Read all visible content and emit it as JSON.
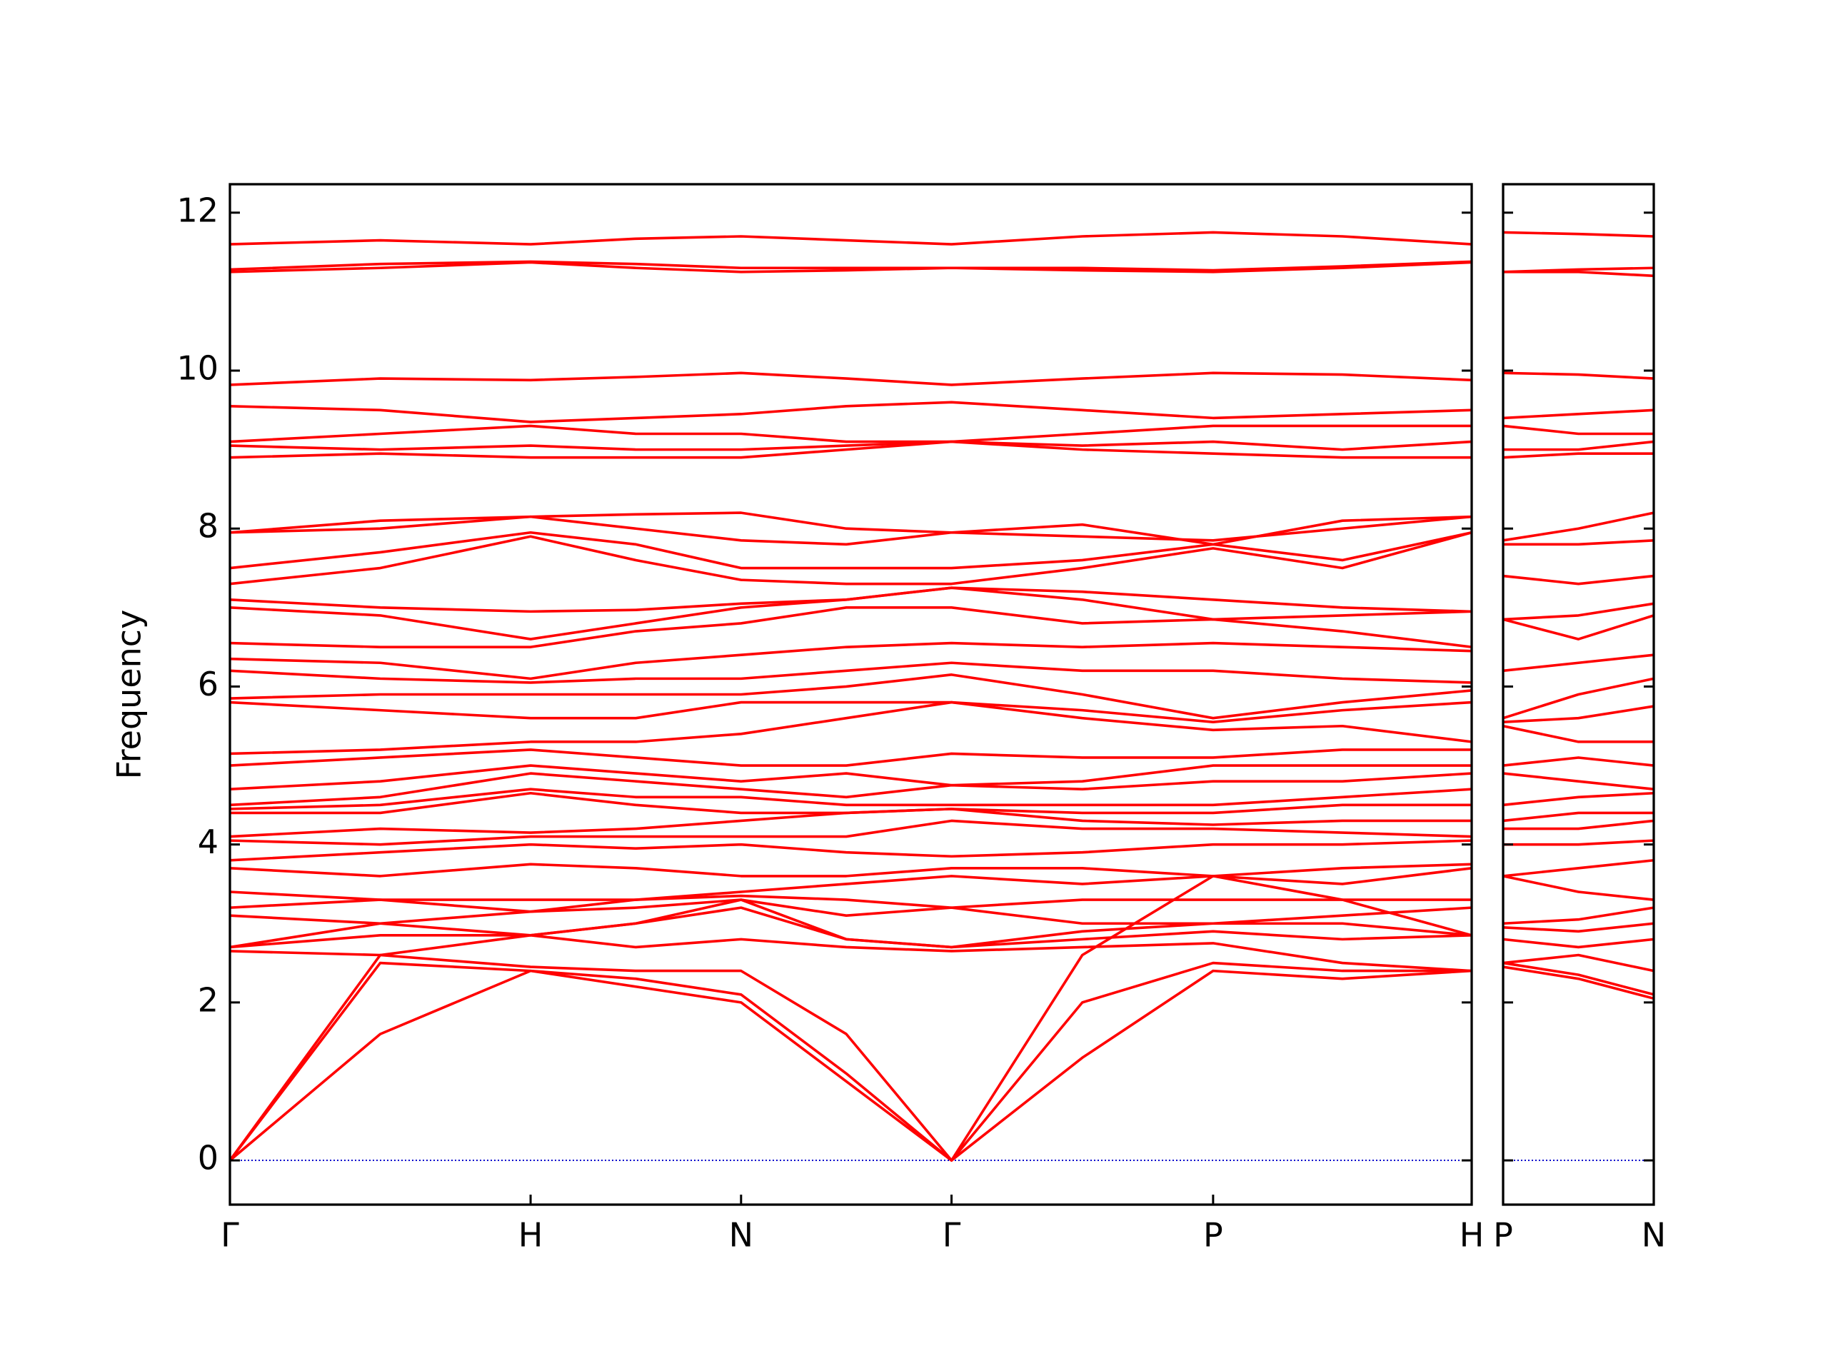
{
  "chart_data": [
    {
      "type": "line",
      "ylabel": "Frequency",
      "color": "#ff0000",
      "zero_line": true,
      "zero_line_color": "#0000cd",
      "show_ytick_labels": true,
      "x": [
        0,
        0.5,
        1.0,
        1.35,
        1.7,
        2.05,
        2.4,
        2.835,
        3.27,
        3.7,
        4.13
      ],
      "xlim": [
        0,
        4.13
      ],
      "xticks": [
        {
          "value": 0,
          "label": "Γ"
        },
        {
          "value": 1.0,
          "label": "H"
        },
        {
          "value": 1.7,
          "label": "N"
        },
        {
          "value": 2.4,
          "label": "Γ"
        },
        {
          "value": 3.27,
          "label": "P"
        },
        {
          "value": 4.13,
          "label": "H"
        }
      ],
      "ylim": [
        -0.56,
        12.36
      ],
      "yticks": [
        0,
        2,
        4,
        6,
        8,
        10,
        12
      ],
      "series": [
        {
          "values": [
            0,
            1.6,
            2.4,
            2.2,
            2.0,
            1.0,
            0,
            1.3,
            2.4,
            2.3,
            2.4
          ]
        },
        {
          "values": [
            0,
            2.5,
            2.4,
            2.3,
            2.1,
            1.1,
            0,
            2.0,
            2.5,
            2.4,
            2.4
          ]
        },
        {
          "values": [
            0,
            2.6,
            2.45,
            2.4,
            2.4,
            1.6,
            0,
            2.6,
            3.6,
            3.3,
            2.85
          ]
        },
        {
          "values": [
            2.65,
            2.6,
            2.85,
            2.7,
            2.8,
            2.7,
            2.65,
            2.7,
            2.75,
            2.5,
            2.4
          ]
        },
        {
          "values": [
            2.7,
            2.85,
            2.85,
            3.0,
            3.2,
            2.8,
            2.7,
            2.8,
            2.9,
            2.8,
            2.85
          ]
        },
        {
          "values": [
            2.7,
            3.0,
            2.85,
            3.0,
            3.3,
            2.8,
            2.7,
            2.9,
            3.0,
            3.0,
            2.85
          ]
        },
        {
          "values": [
            3.1,
            3.0,
            3.15,
            3.2,
            3.3,
            3.1,
            3.2,
            3.0,
            3.0,
            3.1,
            3.2
          ]
        },
        {
          "values": [
            3.2,
            3.3,
            3.15,
            3.3,
            3.35,
            3.3,
            3.2,
            3.3,
            3.3,
            3.3,
            3.3
          ]
        },
        {
          "values": [
            3.4,
            3.3,
            3.3,
            3.3,
            3.4,
            3.5,
            3.6,
            3.5,
            3.6,
            3.5,
            3.7
          ]
        },
        {
          "values": [
            3.7,
            3.6,
            3.75,
            3.7,
            3.6,
            3.6,
            3.7,
            3.7,
            3.6,
            3.7,
            3.75
          ]
        },
        {
          "values": [
            3.8,
            3.9,
            4.0,
            3.95,
            4.0,
            3.9,
            3.85,
            3.9,
            4.0,
            4.0,
            4.05
          ]
        },
        {
          "values": [
            4.05,
            4.0,
            4.1,
            4.1,
            4.1,
            4.1,
            4.3,
            4.2,
            4.2,
            4.15,
            4.1
          ]
        },
        {
          "values": [
            4.1,
            4.2,
            4.15,
            4.2,
            4.3,
            4.4,
            4.45,
            4.3,
            4.25,
            4.3,
            4.3
          ]
        },
        {
          "values": [
            4.4,
            4.4,
            4.65,
            4.5,
            4.4,
            4.4,
            4.45,
            4.4,
            4.4,
            4.5,
            4.5
          ]
        },
        {
          "values": [
            4.45,
            4.5,
            4.7,
            4.6,
            4.6,
            4.5,
            4.5,
            4.5,
            4.5,
            4.6,
            4.7
          ]
        },
        {
          "values": [
            4.5,
            4.6,
            4.9,
            4.8,
            4.7,
            4.6,
            4.75,
            4.7,
            4.8,
            4.8,
            4.9
          ]
        },
        {
          "values": [
            4.7,
            4.8,
            5.0,
            4.9,
            4.8,
            4.9,
            4.75,
            4.8,
            5.0,
            5.0,
            5.0
          ]
        },
        {
          "values": [
            5.0,
            5.1,
            5.2,
            5.1,
            5.0,
            5.0,
            5.15,
            5.1,
            5.1,
            5.2,
            5.2
          ]
        },
        {
          "values": [
            5.15,
            5.2,
            5.3,
            5.3,
            5.4,
            5.6,
            5.8,
            5.6,
            5.45,
            5.5,
            5.3
          ]
        },
        {
          "values": [
            5.8,
            5.7,
            5.6,
            5.6,
            5.8,
            5.8,
            5.8,
            5.7,
            5.55,
            5.7,
            5.8
          ]
        },
        {
          "values": [
            5.85,
            5.9,
            5.9,
            5.9,
            5.9,
            6.0,
            6.15,
            5.9,
            5.6,
            5.8,
            5.95
          ]
        },
        {
          "values": [
            6.2,
            6.1,
            6.05,
            6.1,
            6.1,
            6.2,
            6.3,
            6.2,
            6.2,
            6.1,
            6.05
          ]
        },
        {
          "values": [
            6.35,
            6.3,
            6.1,
            6.3,
            6.4,
            6.5,
            6.55,
            6.5,
            6.55,
            6.5,
            6.45
          ]
        },
        {
          "values": [
            6.55,
            6.5,
            6.5,
            6.7,
            6.8,
            7.0,
            7.0,
            6.8,
            6.85,
            6.7,
            6.5
          ]
        },
        {
          "values": [
            7.0,
            6.9,
            6.6,
            6.8,
            7.0,
            7.1,
            7.25,
            7.1,
            6.85,
            6.9,
            6.95
          ]
        },
        {
          "values": [
            7.1,
            7.0,
            6.95,
            6.97,
            7.05,
            7.1,
            7.25,
            7.2,
            7.1,
            7.0,
            6.95
          ]
        },
        {
          "values": [
            7.3,
            7.5,
            7.9,
            7.6,
            7.35,
            7.3,
            7.3,
            7.5,
            7.75,
            7.5,
            7.95
          ]
        },
        {
          "values": [
            7.5,
            7.7,
            7.95,
            7.8,
            7.5,
            7.5,
            7.5,
            7.6,
            7.8,
            7.6,
            7.95
          ]
        },
        {
          "values": [
            7.95,
            8.1,
            8.15,
            8.0,
            7.85,
            7.8,
            7.95,
            7.9,
            7.85,
            8.0,
            8.15
          ]
        },
        {
          "values": [
            7.95,
            8.0,
            8.15,
            8.18,
            8.2,
            8.0,
            7.95,
            8.05,
            7.8,
            8.1,
            8.15
          ]
        },
        {
          "values": [
            8.9,
            8.95,
            8.9,
            8.9,
            8.9,
            9.0,
            9.1,
            9.0,
            8.95,
            8.9,
            8.9
          ]
        },
        {
          "values": [
            9.05,
            9.0,
            9.05,
            9.0,
            9.0,
            9.05,
            9.1,
            9.05,
            9.1,
            9.0,
            9.1
          ]
        },
        {
          "values": [
            9.1,
            9.2,
            9.3,
            9.2,
            9.2,
            9.1,
            9.1,
            9.2,
            9.3,
            9.3,
            9.3
          ]
        },
        {
          "values": [
            9.55,
            9.5,
            9.35,
            9.4,
            9.45,
            9.55,
            9.6,
            9.5,
            9.4,
            9.45,
            9.5
          ]
        },
        {
          "values": [
            9.82,
            9.9,
            9.88,
            9.92,
            9.97,
            9.9,
            9.82,
            9.9,
            9.97,
            9.95,
            9.88
          ]
        },
        {
          "values": [
            11.25,
            11.3,
            11.37,
            11.3,
            11.25,
            11.27,
            11.3,
            11.27,
            11.25,
            11.3,
            11.37
          ]
        },
        {
          "values": [
            11.28,
            11.35,
            11.38,
            11.35,
            11.3,
            11.3,
            11.3,
            11.3,
            11.27,
            11.32,
            11.38
          ]
        },
        {
          "values": [
            11.6,
            11.65,
            11.6,
            11.67,
            11.7,
            11.65,
            11.6,
            11.7,
            11.75,
            11.7,
            11.6
          ]
        }
      ]
    },
    {
      "type": "line",
      "color": "#ff0000",
      "zero_line": true,
      "zero_line_color": "#0000cd",
      "show_ytick_labels": false,
      "x": [
        0,
        0.25,
        0.5
      ],
      "xlim": [
        0,
        0.5
      ],
      "xticks": [
        {
          "value": 0,
          "label": "P"
        },
        {
          "value": 0.5,
          "label": "N"
        }
      ],
      "ylim": [
        -0.56,
        12.36
      ],
      "yticks": [
        0,
        2,
        4,
        6,
        8,
        10,
        12
      ],
      "series": [
        {
          "values": [
            2.45,
            2.3,
            2.05
          ]
        },
        {
          "values": [
            2.5,
            2.35,
            2.1
          ]
        },
        {
          "values": [
            2.5,
            2.6,
            2.4
          ]
        },
        {
          "values": [
            2.8,
            2.7,
            2.8
          ]
        },
        {
          "values": [
            2.95,
            2.9,
            3.0
          ]
        },
        {
          "values": [
            3.0,
            3.05,
            3.2
          ]
        },
        {
          "values": [
            3.6,
            3.4,
            3.3
          ]
        },
        {
          "values": [
            3.6,
            3.7,
            3.8
          ]
        },
        {
          "values": [
            4.0,
            4.0,
            4.05
          ]
        },
        {
          "values": [
            4.2,
            4.2,
            4.3
          ]
        },
        {
          "values": [
            4.3,
            4.4,
            4.4
          ]
        },
        {
          "values": [
            4.5,
            4.6,
            4.65
          ]
        },
        {
          "values": [
            4.9,
            4.8,
            4.7
          ]
        },
        {
          "values": [
            5.0,
            5.1,
            5.0
          ]
        },
        {
          "values": [
            5.5,
            5.3,
            5.3
          ]
        },
        {
          "values": [
            5.55,
            5.6,
            5.75
          ]
        },
        {
          "values": [
            5.6,
            5.9,
            6.1
          ]
        },
        {
          "values": [
            6.2,
            6.3,
            6.4
          ]
        },
        {
          "values": [
            6.85,
            6.6,
            6.9
          ]
        },
        {
          "values": [
            6.85,
            6.9,
            7.05
          ]
        },
        {
          "values": [
            7.4,
            7.3,
            7.4
          ]
        },
        {
          "values": [
            7.8,
            7.8,
            7.85
          ]
        },
        {
          "values": [
            7.85,
            8.0,
            8.2
          ]
        },
        {
          "values": [
            8.9,
            8.95,
            8.95
          ]
        },
        {
          "values": [
            9.0,
            9.0,
            9.1
          ]
        },
        {
          "values": [
            9.3,
            9.2,
            9.2
          ]
        },
        {
          "values": [
            9.4,
            9.45,
            9.5
          ]
        },
        {
          "values": [
            9.97,
            9.95,
            9.9
          ]
        },
        {
          "values": [
            11.25,
            11.25,
            11.2
          ]
        },
        {
          "values": [
            11.25,
            11.28,
            11.3
          ]
        },
        {
          "values": [
            11.75,
            11.73,
            11.7
          ]
        }
      ]
    }
  ]
}
